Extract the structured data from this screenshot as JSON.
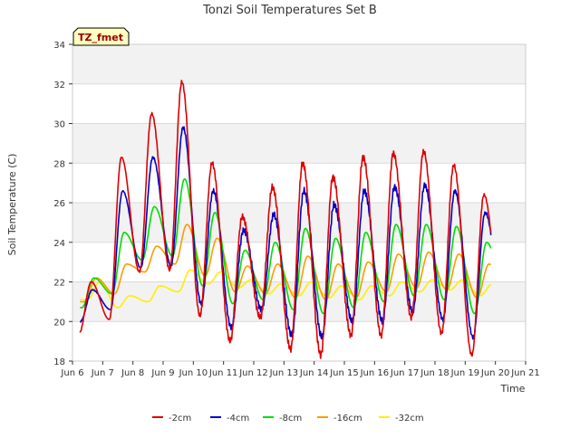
{
  "chart_data": {
    "type": "line",
    "title": "Tonzi Soil Temperatures Set B",
    "xlabel": "Time",
    "ylabel": "Soil Temperature (C)",
    "xlim": [
      6,
      21
    ],
    "ylim": [
      18,
      34
    ],
    "x_ticks": [
      6,
      7,
      8,
      9,
      10,
      11,
      12,
      13,
      14,
      15,
      16,
      17,
      18,
      19,
      20,
      21
    ],
    "x_tick_labels": [
      "Jun 6",
      "Jun 7",
      "Jun 8",
      "Jun 9",
      "Jun 10",
      "Jun 11",
      "Jun 12",
      "Jun 13",
      "Jun 14",
      "Jun 15",
      "Jun 16",
      "Jun 17",
      "Jun 18",
      "Jun 19",
      "Jun 20",
      "Jun 21"
    ],
    "y_ticks": [
      18,
      20,
      22,
      24,
      26,
      28,
      30,
      32,
      34
    ],
    "y_tick_labels": [
      "18",
      "20",
      "22",
      "24",
      "26",
      "28",
      "30",
      "32",
      "34"
    ],
    "grid": true,
    "shaded_bands": [
      [
        20,
        22
      ],
      [
        24,
        26
      ],
      [
        28,
        30
      ],
      [
        32,
        34
      ]
    ],
    "legend_placement": "bottom",
    "annotation": "TZ_fmet",
    "x_start": 6.25,
    "x_end": 19.85,
    "series": [
      {
        "name": "-2cm",
        "color": "#dd0000",
        "width": 1.6,
        "daily_max": [
          22.0,
          28.3,
          30.5,
          32.1,
          28.0,
          25.3,
          26.8,
          28.0,
          27.3,
          28.3,
          28.5,
          28.6,
          27.9,
          26.4,
          26.0
        ],
        "daily_min": [
          19.4,
          20.1,
          22.5,
          22.6,
          20.3,
          19.0,
          20.2,
          18.6,
          18.3,
          19.3,
          19.3,
          20.2,
          19.4,
          18.3,
          20.3
        ]
      },
      {
        "name": "-4cm",
        "color": "#0000cc",
        "width": 1.6,
        "daily_max": [
          21.6,
          26.6,
          28.3,
          29.8,
          26.6,
          24.6,
          25.4,
          26.6,
          25.9,
          26.6,
          26.8,
          26.9,
          26.6,
          25.5,
          24.5
        ],
        "daily_min": [
          20.0,
          20.6,
          22.7,
          22.8,
          20.9,
          19.7,
          20.6,
          19.3,
          19.2,
          20.0,
          20.0,
          20.5,
          20.1,
          19.2,
          20.8
        ]
      },
      {
        "name": "-8cm",
        "color": "#00dd00",
        "width": 1.6,
        "daily_max": [
          22.2,
          24.5,
          25.8,
          27.2,
          25.5,
          23.6,
          24.0,
          24.7,
          24.2,
          24.5,
          24.9,
          24.9,
          24.8,
          24.0,
          23.6
        ],
        "daily_min": [
          20.7,
          21.4,
          23.1,
          23.3,
          21.8,
          20.9,
          21.1,
          20.6,
          20.4,
          20.7,
          21.0,
          21.3,
          21.1,
          20.4,
          21.6
        ]
      },
      {
        "name": "-16cm",
        "color": "#ff9900",
        "width": 1.6,
        "daily_max": [
          22.2,
          22.9,
          23.8,
          24.9,
          24.2,
          22.8,
          22.9,
          23.3,
          22.9,
          23.0,
          23.4,
          23.5,
          23.4,
          22.9,
          22.6
        ],
        "daily_min": [
          21.0,
          21.4,
          22.5,
          22.9,
          22.3,
          21.5,
          21.4,
          21.2,
          21.1,
          21.2,
          21.5,
          21.7,
          21.6,
          21.2,
          21.8
        ]
      },
      {
        "name": "-32cm",
        "color": "#ffee00",
        "width": 1.6,
        "daily_max": [
          22.0,
          21.3,
          21.8,
          22.6,
          22.5,
          22.1,
          21.9,
          22.0,
          21.8,
          21.8,
          22.0,
          22.1,
          22.1,
          21.9,
          21.8
        ],
        "daily_min": [
          21.1,
          20.7,
          21.0,
          21.5,
          21.9,
          21.7,
          21.4,
          21.3,
          21.2,
          21.1,
          21.3,
          21.5,
          21.6,
          21.3,
          21.2
        ]
      }
    ]
  },
  "colors": {
    "plot_background": "#ffffff",
    "band_fill": "#f2f2f2",
    "grid": "#d9d9d9",
    "annotation_fill": "#ffffc0",
    "annotation_text": "#990000"
  }
}
